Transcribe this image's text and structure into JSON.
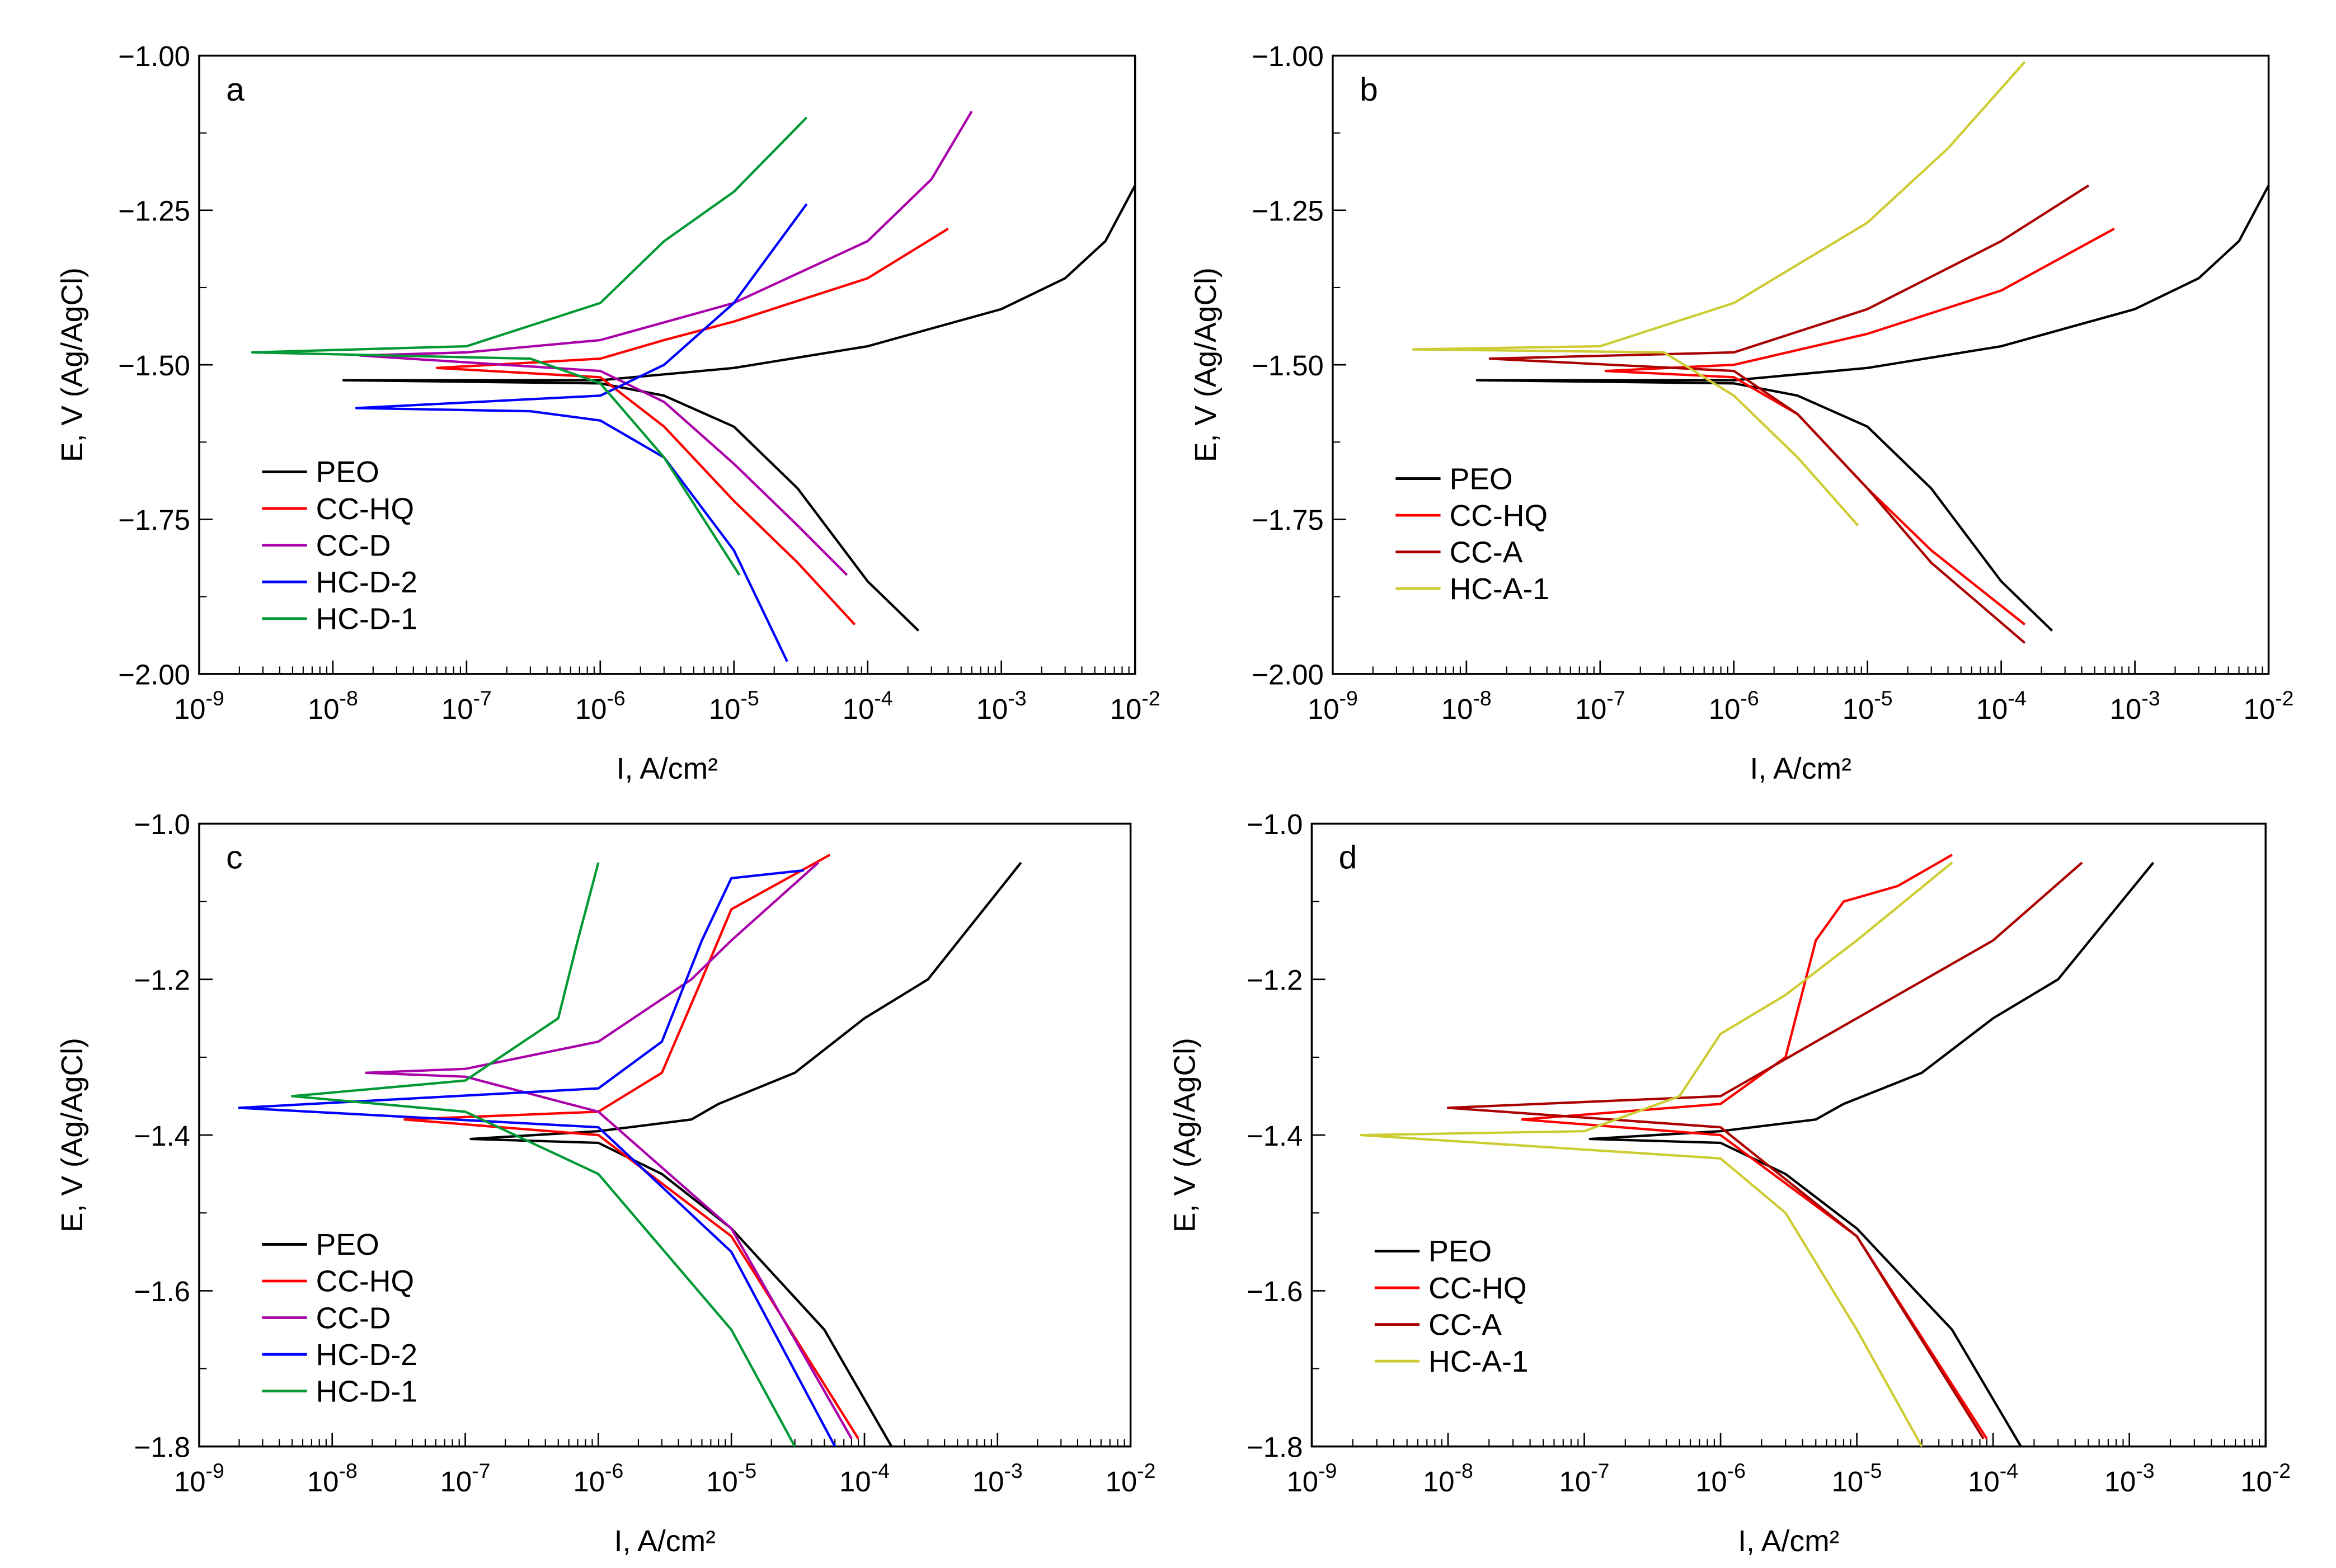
{
  "chart_data": [
    {
      "type": "line",
      "panel_label": "a",
      "xlabel": "I, A/cm²",
      "ylabel": "E, V (Ag/AgCl)",
      "xscale": "log",
      "xlim": [
        1e-09,
        0.01
      ],
      "ylim": [
        -2.0,
        -1.0
      ],
      "x_tick_exponents": [
        -9,
        -8,
        -7,
        -6,
        -5,
        -4,
        -3,
        -2
      ],
      "y_ticks": [
        "-1.00",
        "-1.25",
        "-1.50",
        "-1.75",
        "-2.00"
      ],
      "legend_placement": "lower-left",
      "series": [
        {
          "name": "PEO",
          "color": "#000000",
          "cathodic": [
            [
              1.2e-08,
              -1.525
            ],
            [
              1e-06,
              -1.53
            ],
            [
              3e-06,
              -1.55
            ],
            [
              1e-05,
              -1.6
            ],
            [
              3e-05,
              -1.7
            ],
            [
              0.0001,
              -1.85
            ],
            [
              0.00024,
              -1.93
            ]
          ],
          "anodic": [
            [
              1.2e-08,
              -1.525
            ],
            [
              1e-06,
              -1.525
            ],
            [
              1e-05,
              -1.505
            ],
            [
              0.0001,
              -1.47
            ],
            [
              0.001,
              -1.41
            ],
            [
              0.003,
              -1.36
            ],
            [
              0.006,
              -1.3
            ],
            [
              0.01,
              -1.21
            ]
          ]
        },
        {
          "name": "CC-HQ",
          "color": "#ff0000",
          "cathodic": [
            [
              6e-08,
              -1.505
            ],
            [
              1e-06,
              -1.52
            ],
            [
              3e-06,
              -1.6
            ],
            [
              1e-05,
              -1.72
            ],
            [
              3e-05,
              -1.82
            ],
            [
              8e-05,
              -1.92
            ]
          ],
          "anodic": [
            [
              6e-08,
              -1.505
            ],
            [
              1e-06,
              -1.49
            ],
            [
              3e-06,
              -1.46
            ],
            [
              1e-05,
              -1.43
            ],
            [
              0.0001,
              -1.36
            ],
            [
              0.0004,
              -1.28
            ]
          ]
        },
        {
          "name": "CC-D",
          "color": "#aa00aa",
          "cathodic": [
            [
              1.6e-08,
              -1.485
            ],
            [
              1e-06,
              -1.51
            ],
            [
              3e-06,
              -1.56
            ],
            [
              1e-05,
              -1.66
            ],
            [
              3e-05,
              -1.76
            ],
            [
              7e-05,
              -1.84
            ]
          ],
          "anodic": [
            [
              1.6e-08,
              -1.485
            ],
            [
              1e-07,
              -1.48
            ],
            [
              1e-06,
              -1.46
            ],
            [
              1e-05,
              -1.4
            ],
            [
              0.0001,
              -1.3
            ],
            [
              0.0003,
              -1.2
            ],
            [
              0.0006,
              -1.09
            ]
          ]
        },
        {
          "name": "HC-D-2",
          "color": "#0000ff",
          "cathodic": [
            [
              1.5e-08,
              -1.57
            ],
            [
              3e-07,
              -1.575
            ],
            [
              1e-06,
              -1.59
            ],
            [
              3e-06,
              -1.65
            ],
            [
              1e-05,
              -1.8
            ],
            [
              2.5e-05,
              -1.98
            ]
          ],
          "anodic": [
            [
              1.5e-08,
              -1.57
            ],
            [
              1e-06,
              -1.55
            ],
            [
              3e-06,
              -1.5
            ],
            [
              1e-05,
              -1.4
            ],
            [
              3.5e-05,
              -1.24
            ]
          ]
        },
        {
          "name": "HC-D-1",
          "color": "#009933",
          "cathodic": [
            [
              2.5e-09,
              -1.48
            ],
            [
              3e-07,
              -1.49
            ],
            [
              1e-06,
              -1.53
            ],
            [
              3e-06,
              -1.65
            ],
            [
              1.1e-05,
              -1.84
            ]
          ],
          "anodic": [
            [
              2.5e-09,
              -1.48
            ],
            [
              1e-07,
              -1.47
            ],
            [
              1e-06,
              -1.4
            ],
            [
              3e-06,
              -1.3
            ],
            [
              1e-05,
              -1.22
            ],
            [
              3.5e-05,
              -1.1
            ]
          ]
        }
      ]
    },
    {
      "type": "line",
      "panel_label": "b",
      "xlabel": "I, A/cm²",
      "ylabel": "E, V (Ag/AgCl)",
      "xscale": "log",
      "xlim": [
        1e-09,
        0.01
      ],
      "ylim": [
        -2.0,
        -1.0
      ],
      "x_tick_exponents": [
        -9,
        -8,
        -7,
        -6,
        -5,
        -4,
        -3,
        -2
      ],
      "y_ticks": [
        "-1.00",
        "-1.25",
        "-1.50",
        "-1.75",
        "-2.00"
      ],
      "legend_placement": "lower-left",
      "series": [
        {
          "name": "PEO",
          "color": "#000000",
          "cathodic": [
            [
              1.2e-08,
              -1.525
            ],
            [
              1e-06,
              -1.53
            ],
            [
              3e-06,
              -1.55
            ],
            [
              1e-05,
              -1.6
            ],
            [
              3e-05,
              -1.7
            ],
            [
              0.0001,
              -1.85
            ],
            [
              0.00024,
              -1.93
            ]
          ],
          "anodic": [
            [
              1.2e-08,
              -1.525
            ],
            [
              1e-06,
              -1.525
            ],
            [
              1e-05,
              -1.505
            ],
            [
              0.0001,
              -1.47
            ],
            [
              0.001,
              -1.41
            ],
            [
              0.003,
              -1.36
            ],
            [
              0.006,
              -1.3
            ],
            [
              0.01,
              -1.21
            ]
          ]
        },
        {
          "name": "CC-HQ",
          "color": "#ff0000",
          "cathodic": [
            [
              1.1e-07,
              -1.51
            ],
            [
              1e-06,
              -1.52
            ],
            [
              3e-06,
              -1.58
            ],
            [
              1e-05,
              -1.7
            ],
            [
              3e-05,
              -1.8
            ],
            [
              0.00015,
              -1.92
            ]
          ],
          "anodic": [
            [
              1.1e-07,
              -1.51
            ],
            [
              1e-06,
              -1.5
            ],
            [
              1e-05,
              -1.45
            ],
            [
              0.0001,
              -1.38
            ],
            [
              0.0007,
              -1.28
            ]
          ]
        },
        {
          "name": "CC-A",
          "color": "#aa0000",
          "cathodic": [
            [
              1.5e-08,
              -1.49
            ],
            [
              1e-06,
              -1.51
            ],
            [
              3e-06,
              -1.58
            ],
            [
              1e-05,
              -1.7
            ],
            [
              3e-05,
              -1.82
            ],
            [
              0.00015,
              -1.95
            ]
          ],
          "anodic": [
            [
              1.5e-08,
              -1.49
            ],
            [
              1e-06,
              -1.48
            ],
            [
              1e-05,
              -1.41
            ],
            [
              0.0001,
              -1.3
            ],
            [
              0.00045,
              -1.21
            ]
          ]
        },
        {
          "name": "HC-A-1",
          "color": "#cccc33",
          "cathodic": [
            [
              4e-09,
              -1.475
            ],
            [
              3e-07,
              -1.48
            ],
            [
              1e-06,
              -1.55
            ],
            [
              3e-06,
              -1.65
            ],
            [
              8.5e-06,
              -1.76
            ]
          ],
          "anodic": [
            [
              4e-09,
              -1.475
            ],
            [
              1e-07,
              -1.47
            ],
            [
              1e-06,
              -1.4
            ],
            [
              1e-05,
              -1.27
            ],
            [
              4e-05,
              -1.15
            ],
            [
              0.00015,
              -1.01
            ]
          ]
        }
      ]
    },
    {
      "type": "line",
      "panel_label": "c",
      "xlabel": "I, A/cm²",
      "ylabel": "E, V (Ag/AgCl)",
      "xscale": "log",
      "xlim": [
        1e-09,
        0.01
      ],
      "ylim": [
        -1.8,
        -1.0
      ],
      "x_tick_exponents": [
        -9,
        -8,
        -7,
        -6,
        -5,
        -4,
        -3,
        -2
      ],
      "y_ticks": [
        "-1.0",
        "-1.2",
        "-1.4",
        "-1.6",
        "-1.8"
      ],
      "legend_placement": "lower-left",
      "series": [
        {
          "name": "PEO",
          "color": "#000000",
          "cathodic": [
            [
              1.1e-07,
              -1.405
            ],
            [
              1e-06,
              -1.41
            ],
            [
              3e-06,
              -1.45
            ],
            [
              1e-05,
              -1.52
            ],
            [
              5e-05,
              -1.65
            ],
            [
              0.00016,
              -1.8
            ]
          ],
          "anodic": [
            [
              1.1e-07,
              -1.4
            ],
            [
              1e-06,
              -1.395
            ],
            [
              5e-06,
              -1.38
            ],
            [
              8e-06,
              -1.36
            ],
            [
              3e-05,
              -1.32
            ],
            [
              0.0001,
              -1.25
            ],
            [
              0.0003,
              -1.2
            ],
            [
              0.0015,
              -1.05
            ]
          ]
        },
        {
          "name": "CC-HQ",
          "color": "#ff0000",
          "cathodic": [
            [
              3.5e-08,
              -1.38
            ],
            [
              1e-06,
              -1.4
            ],
            [
              1e-05,
              -1.53
            ],
            [
              9e-05,
              -1.79
            ]
          ],
          "anodic": [
            [
              3.5e-08,
              -1.38
            ],
            [
              1e-06,
              -1.37
            ],
            [
              3e-06,
              -1.32
            ],
            [
              6e-06,
              -1.2
            ],
            [
              1e-05,
              -1.11
            ],
            [
              5.5e-05,
              -1.04
            ]
          ]
        },
        {
          "name": "CC-D",
          "color": "#aa00aa",
          "cathodic": [
            [
              1.8e-08,
              -1.32
            ],
            [
              1e-07,
              -1.325
            ],
            [
              1e-06,
              -1.37
            ],
            [
              1e-05,
              -1.52
            ],
            [
              8e-05,
              -1.79
            ]
          ],
          "anodic": [
            [
              1.8e-08,
              -1.32
            ],
            [
              1e-07,
              -1.315
            ],
            [
              1e-06,
              -1.28
            ],
            [
              5e-06,
              -1.2
            ],
            [
              1e-05,
              -1.15
            ],
            [
              4.5e-05,
              -1.05
            ]
          ]
        },
        {
          "name": "HC-D-2",
          "color": "#0000ff",
          "cathodic": [
            [
              2e-09,
              -1.365
            ],
            [
              1e-06,
              -1.39
            ],
            [
              1e-05,
              -1.55
            ],
            [
              6e-05,
              -1.8
            ]
          ],
          "anodic": [
            [
              2e-09,
              -1.365
            ],
            [
              1e-06,
              -1.34
            ],
            [
              3e-06,
              -1.28
            ],
            [
              6e-06,
              -1.15
            ],
            [
              1e-05,
              -1.07
            ],
            [
              3.5e-05,
              -1.06
            ]
          ]
        },
        {
          "name": "HC-D-1",
          "color": "#009933",
          "cathodic": [
            [
              5e-09,
              -1.35
            ],
            [
              1e-07,
              -1.37
            ],
            [
              1e-06,
              -1.45
            ],
            [
              1e-05,
              -1.65
            ],
            [
              3e-05,
              -1.8
            ]
          ],
          "anodic": [
            [
              5e-09,
              -1.35
            ],
            [
              1e-07,
              -1.33
            ],
            [
              5e-07,
              -1.25
            ],
            [
              7e-07,
              -1.15
            ],
            [
              1e-06,
              -1.05
            ]
          ]
        }
      ]
    },
    {
      "type": "line",
      "panel_label": "d",
      "xlabel": "I, A/cm²",
      "ylabel": "E, V (Ag/AgCl)",
      "xscale": "log",
      "xlim": [
        1e-09,
        0.01
      ],
      "ylim": [
        -1.8,
        -1.0
      ],
      "x_tick_exponents": [
        -9,
        -8,
        -7,
        -6,
        -5,
        -4,
        -3,
        -2
      ],
      "y_ticks": [
        "-1.0",
        "-1.2",
        "-1.4",
        "-1.6",
        "-1.8"
      ],
      "legend_placement": "lower-left",
      "series": [
        {
          "name": "PEO",
          "color": "#000000",
          "cathodic": [
            [
              1.1e-07,
              -1.405
            ],
            [
              1e-06,
              -1.41
            ],
            [
              3e-06,
              -1.45
            ],
            [
              1e-05,
              -1.52
            ],
            [
              5e-05,
              -1.65
            ],
            [
              0.00016,
              -1.8
            ]
          ],
          "anodic": [
            [
              1.1e-07,
              -1.4
            ],
            [
              1e-06,
              -1.395
            ],
            [
              5e-06,
              -1.38
            ],
            [
              8e-06,
              -1.36
            ],
            [
              3e-05,
              -1.32
            ],
            [
              0.0001,
              -1.25
            ],
            [
              0.0003,
              -1.2
            ],
            [
              0.0015,
              -1.05
            ]
          ]
        },
        {
          "name": "CC-HQ",
          "color": "#ff0000",
          "cathodic": [
            [
              3.5e-08,
              -1.38
            ],
            [
              1e-06,
              -1.4
            ],
            [
              1e-05,
              -1.53
            ],
            [
              9e-05,
              -1.79
            ]
          ],
          "anodic": [
            [
              3.5e-08,
              -1.38
            ],
            [
              1e-06,
              -1.36
            ],
            [
              3e-06,
              -1.3
            ],
            [
              5e-06,
              -1.15
            ],
            [
              8e-06,
              -1.1
            ],
            [
              2e-05,
              -1.08
            ],
            [
              5e-05,
              -1.04
            ]
          ]
        },
        {
          "name": "CC-A",
          "color": "#aa0000",
          "cathodic": [
            [
              1e-08,
              -1.365
            ],
            [
              1e-06,
              -1.39
            ],
            [
              1e-05,
              -1.53
            ],
            [
              8.5e-05,
              -1.79
            ]
          ],
          "anodic": [
            [
              1e-08,
              -1.365
            ],
            [
              1e-06,
              -1.35
            ],
            [
              1e-05,
              -1.25
            ],
            [
              0.0001,
              -1.15
            ],
            [
              0.00045,
              -1.05
            ]
          ]
        },
        {
          "name": "HC-A-1",
          "color": "#cccc33",
          "cathodic": [
            [
              2.3e-09,
              -1.4
            ],
            [
              1e-06,
              -1.43
            ],
            [
              3e-06,
              -1.5
            ],
            [
              1e-05,
              -1.65
            ],
            [
              3e-05,
              -1.8
            ]
          ],
          "anodic": [
            [
              2.3e-09,
              -1.4
            ],
            [
              1e-07,
              -1.395
            ],
            [
              5e-07,
              -1.35
            ],
            [
              1e-06,
              -1.27
            ],
            [
              3e-06,
              -1.22
            ],
            [
              1e-05,
              -1.15
            ],
            [
              5e-05,
              -1.05
            ]
          ]
        }
      ]
    }
  ]
}
